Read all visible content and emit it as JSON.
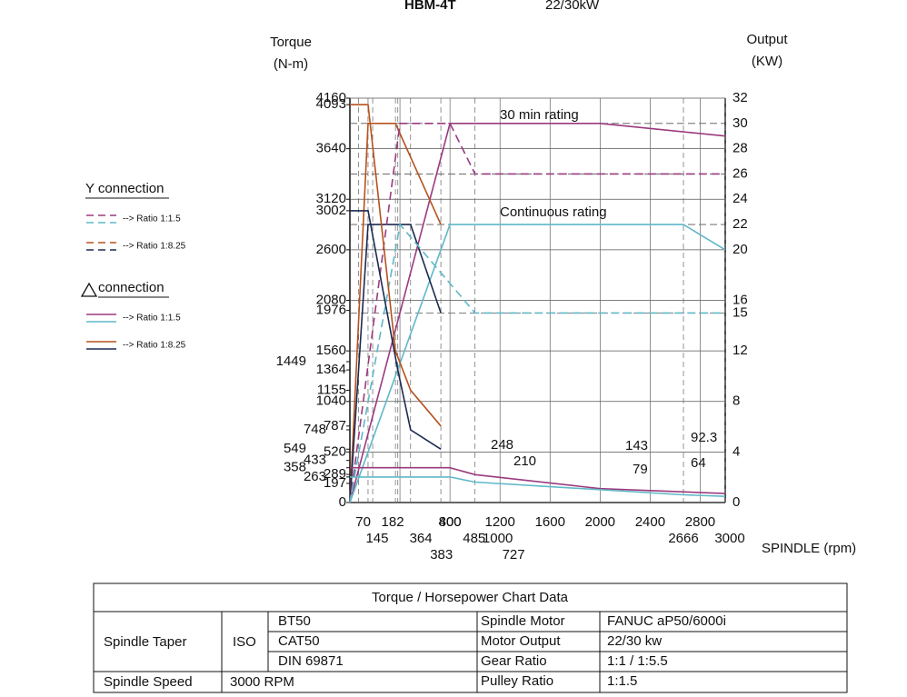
{
  "header": {
    "title_bold": "HBM-4T",
    "title_rest": "22/30kW"
  },
  "chart_data": {
    "type": "line",
    "y_label_lines": [
      "Torque",
      "(N-m)"
    ],
    "y2_label_lines": [
      "Output",
      "(KW)"
    ],
    "x_label": "SPINDLE (rpm)",
    "xlim": [
      0,
      3000
    ],
    "xticks": [
      70,
      145,
      182,
      364,
      383,
      400,
      485,
      727,
      800,
      1000,
      1200,
      1600,
      2000,
      2400,
      2666,
      2800,
      3000
    ],
    "ylim": [
      0,
      4160
    ],
    "yticks": [
      0,
      197,
      263,
      289,
      358,
      433,
      520,
      549,
      748,
      787,
      1040,
      1155,
      1364,
      1449,
      1560,
      1976,
      2080,
      2600,
      3002,
      3120,
      3640,
      4093,
      4160
    ],
    "y2lim": [
      0,
      32
    ],
    "y2ticks": [
      0,
      4,
      8,
      12,
      15,
      16,
      20,
      22,
      24,
      26,
      28,
      30,
      32
    ],
    "grid": true,
    "annotations": [
      "30 min rating",
      "Continuous rating",
      "248",
      "210",
      "143",
      "79",
      "92.3",
      "64"
    ],
    "series": [
      {
        "x": [
          0,
          800,
          2000,
          3000
        ],
        "values": [
          0,
          30,
          30,
          29
        ],
        "color": "#9b3a7e",
        "axis": "y2",
        "dash": false
      },
      {
        "x": [
          0,
          800,
          2666,
          3000
        ],
        "values": [
          0,
          22,
          22,
          20
        ],
        "color": "#5fb8c8",
        "axis": "y2",
        "dash": false
      },
      {
        "x": [
          0,
          145,
          364,
          727
        ],
        "values": [
          0,
          30,
          30,
          22
        ],
        "color": "#b5521e",
        "axis": "y2",
        "dash": false
      },
      {
        "x": [
          0,
          145,
          485,
          727
        ],
        "values": [
          0,
          22,
          22,
          15
        ],
        "color": "#1c2a50",
        "axis": "y2",
        "dash": false
      },
      {
        "x": [
          0,
          400,
          800,
          1000,
          3000
        ],
        "values": [
          0,
          30,
          30,
          26,
          26
        ],
        "color": "#9b3a7e",
        "axis": "y2",
        "dash": true
      },
      {
        "x": [
          0,
          400,
          1000,
          3000
        ],
        "values": [
          0,
          22,
          15,
          15
        ],
        "color": "#5fb8c8",
        "axis": "y2",
        "dash": true
      },
      {
        "x": [
          0,
          800,
          1000,
          2000,
          3000
        ],
        "values": [
          358,
          358,
          287,
          143,
          92.3
        ],
        "color": "#9b3a7e",
        "dash": false
      },
      {
        "x": [
          0,
          800,
          1000,
          2666,
          3000
        ],
        "values": [
          263,
          263,
          210,
          79,
          64
        ],
        "color": "#5fb8c8",
        "dash": false
      },
      {
        "x": [
          0,
          145,
          364,
          485,
          727
        ],
        "values": [
          4093,
          4093,
          1560,
          1155,
          787
        ],
        "color": "#b5521e",
        "dash": false
      },
      {
        "x": [
          0,
          145,
          383,
          485,
          727
        ],
        "values": [
          3002,
          3002,
          1364,
          748,
          549
        ],
        "color": "#1c2a50",
        "dash": false
      }
    ],
    "legend_groups": [
      {
        "title": "Y connection",
        "dash": true,
        "entries": [
          {
            "label": "--> Ratio 1:1.5",
            "colors": [
              "#9b3a7e",
              "#5fb8c8"
            ]
          },
          {
            "label": "--> Ratio 1:8.25",
            "colors": [
              "#b5521e",
              "#1c2a50"
            ]
          }
        ]
      },
      {
        "title": "connection",
        "dash": false,
        "entries": [
          {
            "label": "--> Ratio 1:1.5",
            "colors": [
              "#9b3a7e",
              "#5fb8c8"
            ]
          },
          {
            "label": "--> Ratio 1:8.25",
            "colors": [
              "#b5521e",
              "#1c2a50"
            ]
          }
        ]
      }
    ]
  },
  "table": {
    "title": "Torque / Horsepower Chart Data",
    "spindle_taper": "Spindle Taper",
    "iso": "ISO",
    "tapers": [
      "BT50",
      "CAT50",
      "DIN 69871"
    ],
    "spindle_speed": "Spindle Speed",
    "speed": "3000 RPM",
    "right": [
      [
        "Spindle Motor",
        "FANUC aP50/6000i"
      ],
      [
        "Motor Output",
        "22/30 kw"
      ],
      [
        "Gear Ratio",
        "1:1 / 1:5.5"
      ],
      [
        "Pulley Ratio",
        "1:1.5"
      ]
    ]
  }
}
